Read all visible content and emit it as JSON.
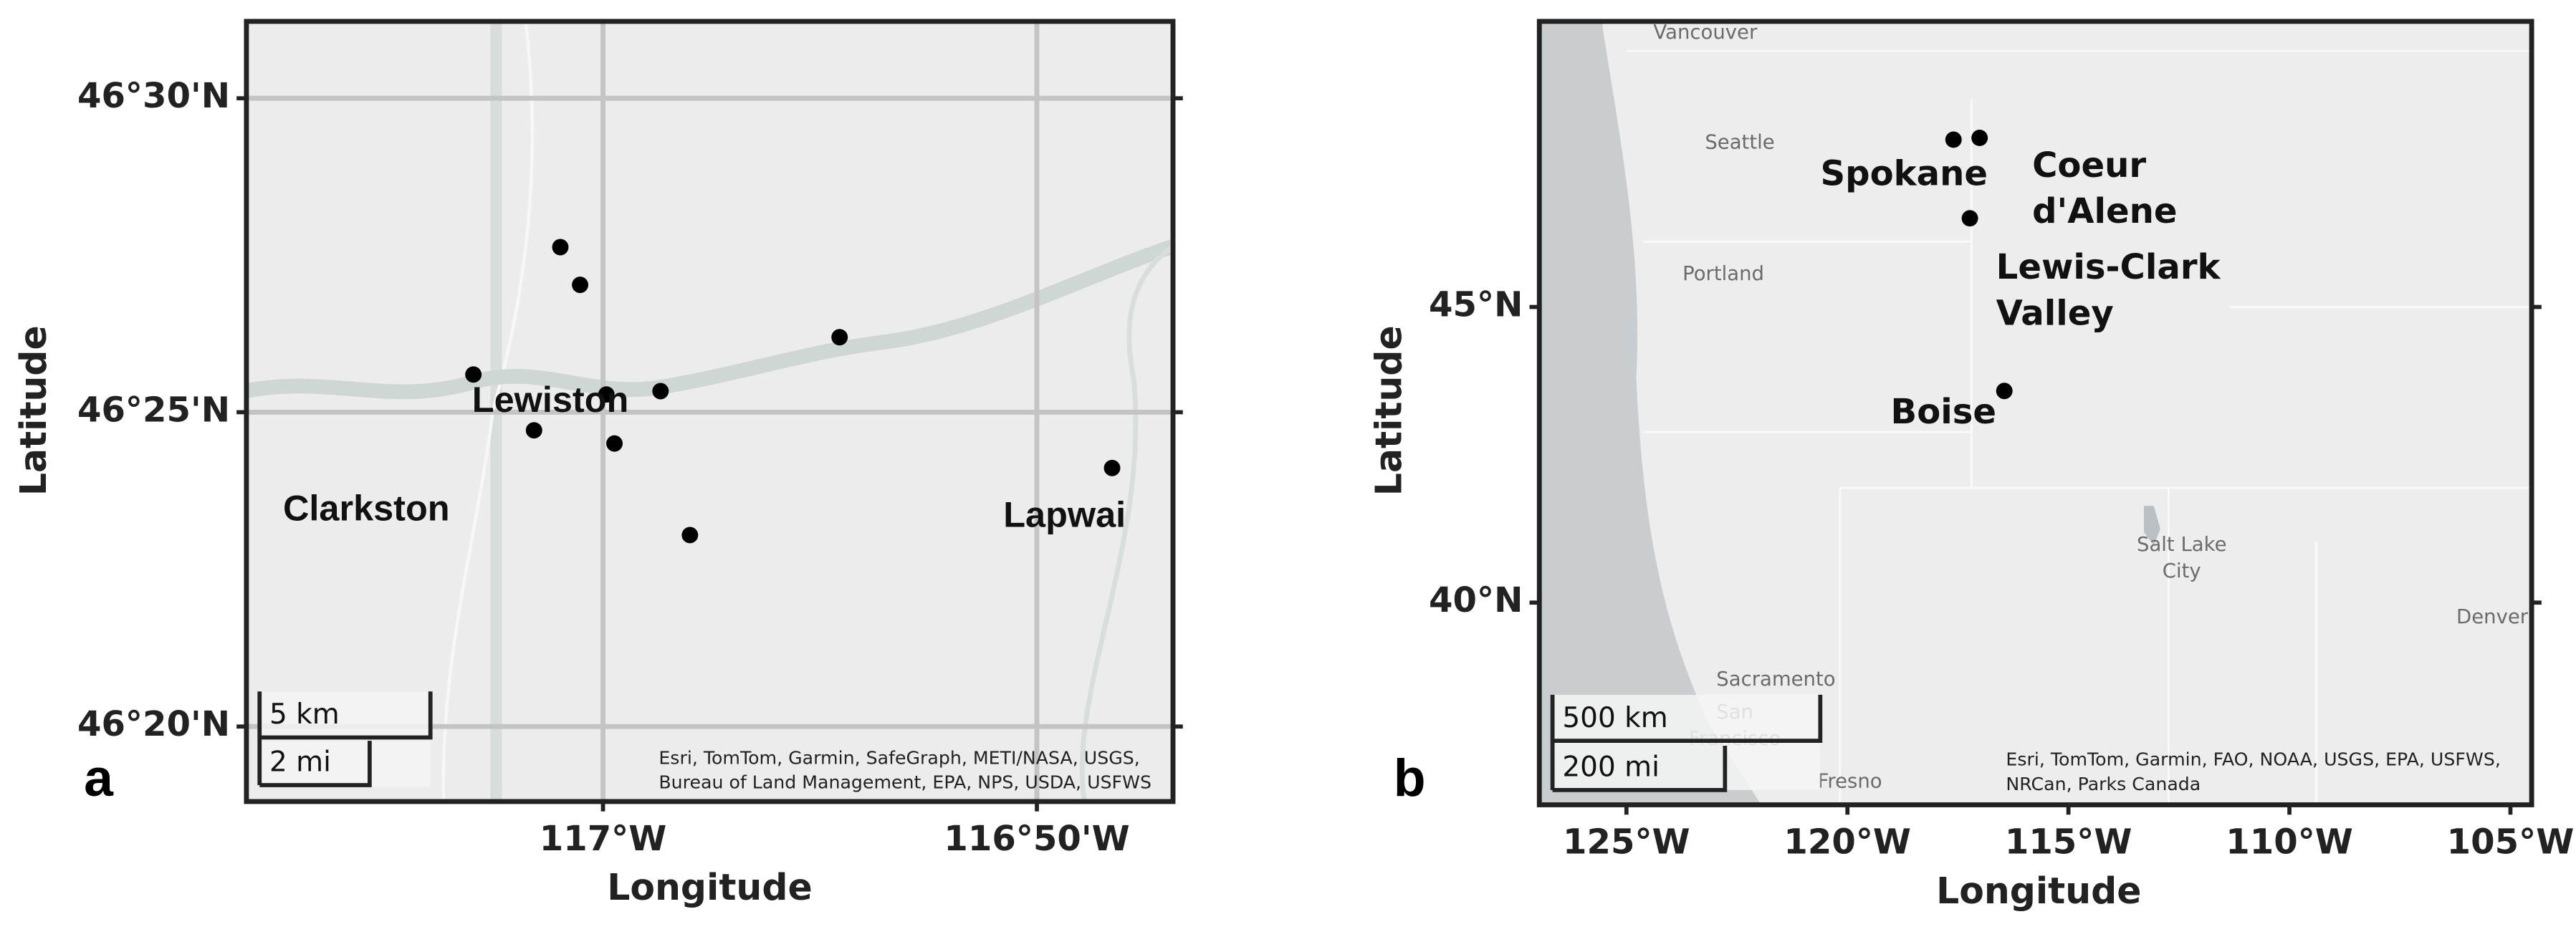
{
  "chart_data": [
    {
      "type": "scatter",
      "panel_label": "a",
      "x_label": "Longitude",
      "y_label": "Latitude",
      "xlim": [
        -117.137,
        -116.781
      ],
      "ylim": [
        46.3134,
        46.5204
      ],
      "xticks": [
        {
          "value": -117,
          "label": "117°W"
        },
        {
          "value": -116.8333,
          "label": "116°50'W"
        }
      ],
      "yticks": [
        {
          "value": 46.5,
          "label": "46°30'N"
        },
        {
          "value": 46.4167,
          "label": "46°25'N"
        },
        {
          "value": 46.3333,
          "label": "46°20'N"
        }
      ],
      "grid": true,
      "color": "#000000",
      "x": [
        -117.0164,
        -117.0088,
        -117.0498,
        -116.9987,
        -116.9779,
        -117.0265,
        -116.9956,
        -116.9091,
        -116.9666,
        -116.8044
      ],
      "values": [
        46.4605,
        46.4505,
        46.4267,
        46.4214,
        46.4223,
        46.4119,
        46.4084,
        46.4366,
        46.3841,
        46.4019
      ],
      "places": [
        [
          "Lewiston"
        ],
        [
          "Clarkston"
        ],
        [
          "Lapwai"
        ]
      ],
      "basemap_labels": [],
      "scale_bar": [
        "5 km",
        "2 mi"
      ],
      "attribution": [
        "Esri, TomTom, Garmin, SafeGraph, METI/NASA, USGS,",
        "Bureau of Land Management, EPA, NPS, USDA, USFWS"
      ]
    },
    {
      "type": "scatter",
      "panel_label": "b",
      "x_label": "Longitude",
      "y_label": "Latitude",
      "xlim": [
        -126.97,
        -104.52
      ],
      "ylim": [
        36.58,
        49.83
      ],
      "xticks": [
        {
          "value": -125,
          "label": "125°W"
        },
        {
          "value": -120,
          "label": "120°W"
        },
        {
          "value": -115,
          "label": "115°W"
        },
        {
          "value": -110,
          "label": "110°W"
        },
        {
          "value": -105,
          "label": "105°W"
        }
      ],
      "yticks": [
        {
          "value": 45,
          "label": "45°N"
        },
        {
          "value": 40,
          "label": "40°N"
        }
      ],
      "grid": false,
      "color": "#000000",
      "x": [
        -117.6,
        -117.01,
        -117.23,
        -116.45
      ],
      "values": [
        47.83,
        47.86,
        46.5,
        43.58
      ],
      "places": [
        [
          "Spokane"
        ],
        [
          "Coeur",
          "d'Alene"
        ],
        [
          "Lewis-Clark",
          "Valley"
        ],
        [
          "Boise"
        ]
      ],
      "basemap_labels": [
        [
          "Vancouver"
        ],
        [
          "Seattle"
        ],
        [
          "Portland"
        ],
        [
          "Salt Lake",
          "City"
        ],
        [
          "Denver"
        ],
        [
          "Sacramento"
        ],
        [
          "San",
          "Francisco"
        ],
        [
          "Fresno"
        ]
      ],
      "scale_bar": [
        "500 km",
        "200 mi"
      ],
      "attribution": [
        "Esri, TomTom, Garmin, FAO, NOAA, USGS, EPA, USFWS,",
        "NRCan, Parks Canada"
      ]
    }
  ]
}
